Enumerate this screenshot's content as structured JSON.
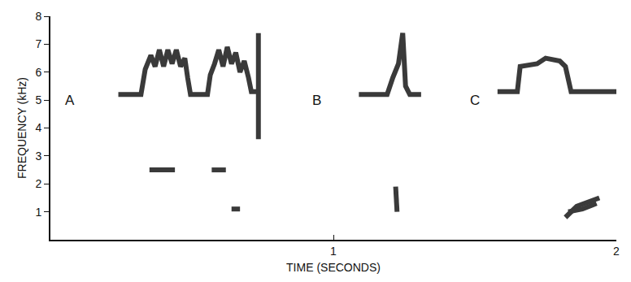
{
  "chart_data": {
    "type": "line",
    "x_label": "TIME (SECONDS)",
    "y_label": "FREQUENCY (kHz)",
    "xlim": [
      0,
      2
    ],
    "xticks": [
      1,
      2
    ],
    "ylim": [
      0,
      8
    ],
    "yticks": [
      1,
      2,
      3,
      4,
      5,
      6,
      7,
      8
    ],
    "grid": false,
    "annotations": [
      {
        "text": "A",
        "x": 0.07,
        "y": 5
      },
      {
        "text": "B",
        "x": 0.94,
        "y": 5
      },
      {
        "text": "C",
        "x": 1.5,
        "y": 5
      }
    ],
    "series": [
      {
        "color": "#3a3a3a",
        "x": [
          0.24,
          0.32,
          0.335,
          0.355,
          0.37,
          0.385,
          0.4,
          0.415,
          0.43,
          0.445,
          0.46,
          0.475,
          0.485,
          0.495,
          0.555,
          0.565,
          0.58,
          0.595,
          0.61,
          0.625,
          0.64,
          0.655,
          0.67,
          0.685,
          0.7,
          0.71,
          0.73
        ],
        "values": [
          5.2,
          5.2,
          6.1,
          6.6,
          6.2,
          6.8,
          6.2,
          6.8,
          6.3,
          6.8,
          6.2,
          6.5,
          5.8,
          5.2,
          5.2,
          5.9,
          6.3,
          6.8,
          6.2,
          6.9,
          6.3,
          6.7,
          6.0,
          6.4,
          5.8,
          5.3,
          5.3
        ]
      },
      {
        "color": "#3a3a3a",
        "x": [
          0.735,
          0.735
        ],
        "values": [
          7.4,
          3.6
        ]
      },
      {
        "color": "#3a3a3a",
        "x": [
          0.35,
          0.44
        ],
        "values": [
          2.5,
          2.5
        ]
      },
      {
        "color": "#3a3a3a",
        "x": [
          0.57,
          0.62
        ],
        "values": [
          2.5,
          2.5
        ]
      },
      {
        "color": "#3a3a3a",
        "x": [
          0.64,
          0.67
        ],
        "values": [
          1.1,
          1.1
        ]
      },
      {
        "color": "#3a3a3a",
        "x": [
          1.09,
          1.19,
          1.21,
          1.23,
          1.245,
          1.255,
          1.27,
          1.31
        ],
        "values": [
          5.2,
          5.2,
          5.8,
          6.3,
          7.4,
          5.5,
          5.2,
          5.2
        ]
      },
      {
        "color": "#3a3a3a",
        "x": [
          1.22,
          1.225
        ],
        "values": [
          1.9,
          1.0
        ]
      },
      {
        "color": "#3a3a3a",
        "x": [
          1.58,
          1.65,
          1.66,
          1.72,
          1.75,
          1.8,
          1.82,
          1.84,
          2.0
        ],
        "values": [
          5.3,
          5.3,
          6.2,
          6.3,
          6.5,
          6.4,
          6.2,
          5.3,
          5.3
        ]
      },
      {
        "color": "#3a3a3a",
        "x": [
          1.82,
          1.86,
          1.94
        ],
        "values": [
          0.8,
          1.2,
          1.5
        ]
      },
      {
        "color": "#3a3a3a",
        "x": [
          1.83,
          1.88,
          1.93
        ],
        "values": [
          1.0,
          1.1,
          1.3
        ]
      }
    ]
  }
}
